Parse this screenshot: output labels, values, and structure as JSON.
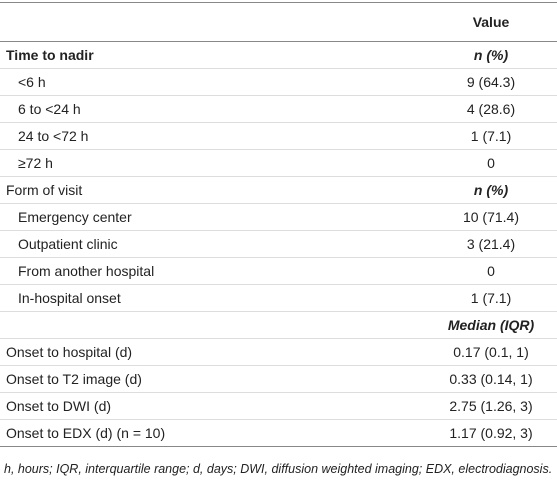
{
  "table": {
    "header": [
      "",
      "Value"
    ],
    "rows": [
      [
        "Time to nadir",
        "n (%)"
      ],
      [
        "<6 h",
        "9 (64.3)"
      ],
      [
        "6 to <24 h",
        "4 (28.6)"
      ],
      [
        "24 to <72 h",
        "1 (7.1)"
      ],
      [
        "≥72 h",
        "0"
      ],
      [
        "Form of visit",
        "n (%)"
      ],
      [
        "Emergency center",
        "10 (71.4)"
      ],
      [
        "Outpatient clinic",
        "3 (21.4)"
      ],
      [
        "From another hospital",
        "0"
      ],
      [
        "In-hospital onset",
        "1 (7.1)"
      ],
      [
        "",
        "Median (IQR)"
      ],
      [
        "Onset to hospital (d)",
        "0.17 (0.1, 1)"
      ],
      [
        "Onset to T2 image (d)",
        "0.33 (0.14, 1)"
      ],
      [
        "Onset to DWI (d)",
        "2.75 (1.26, 3)"
      ],
      [
        "Onset to EDX (d) (n = 10)",
        "1.17 (0.92, 3)"
      ]
    ]
  },
  "footnote": "h, hours; IQR, interquartile range; d, days; DWI, diffusion weighted imaging; EDX, electrodiagnosis."
}
